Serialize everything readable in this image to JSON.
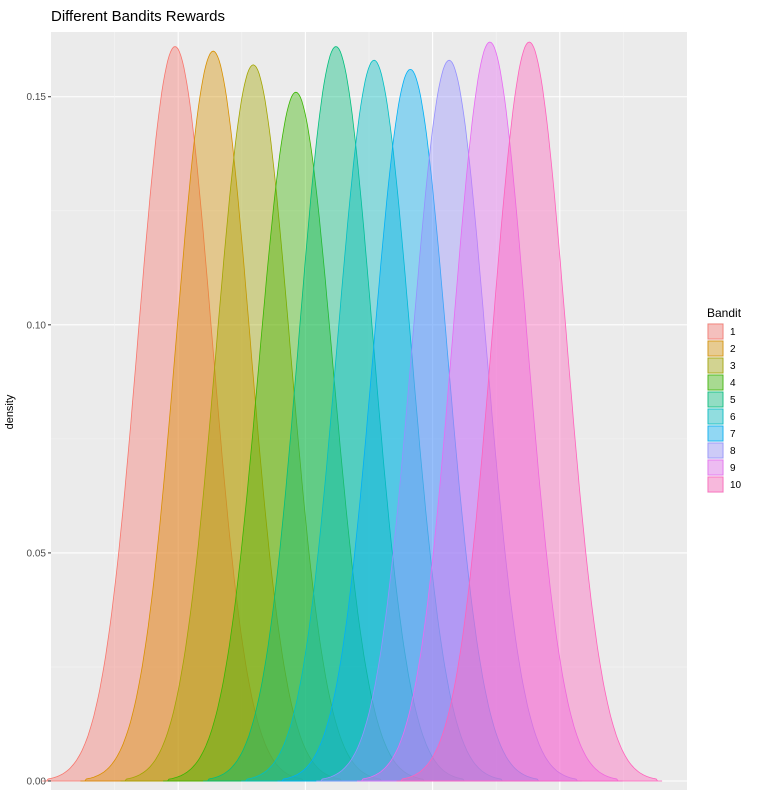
{
  "chart_data": {
    "type": "area",
    "title": "Different Bandits Rewards",
    "xlabel": "",
    "ylabel": "density",
    "ylim": [
      0,
      0.162
    ],
    "xlim": [
      0,
      1
    ],
    "y_ticks": [
      "0.00",
      "0.05",
      "0.10",
      "0.15"
    ],
    "y_tick_values": [
      0,
      0.05,
      0.1,
      0.15
    ],
    "x_gridlines": [
      0.1,
      0.2,
      0.3,
      0.4,
      0.5,
      0.6,
      0.7,
      0.8,
      0.9
    ],
    "grid": true,
    "legend": {
      "title": "Bandit",
      "placement": "right"
    },
    "series": [
      {
        "name": "1",
        "center": 0.195,
        "peak": 0.161,
        "spread": 0.058,
        "color": "#F8766D"
      },
      {
        "name": "2",
        "center": 0.255,
        "peak": 0.16,
        "spread": 0.058,
        "color": "#D89000"
      },
      {
        "name": "3",
        "center": 0.318,
        "peak": 0.157,
        "spread": 0.058,
        "color": "#A3A500"
      },
      {
        "name": "4",
        "center": 0.385,
        "peak": 0.151,
        "spread": 0.058,
        "color": "#39B600"
      },
      {
        "name": "5",
        "center": 0.448,
        "peak": 0.161,
        "spread": 0.058,
        "color": "#00BF7D"
      },
      {
        "name": "6",
        "center": 0.508,
        "peak": 0.158,
        "spread": 0.058,
        "color": "#00BFC4"
      },
      {
        "name": "7",
        "center": 0.565,
        "peak": 0.156,
        "spread": 0.058,
        "color": "#00B0F6"
      },
      {
        "name": "8",
        "center": 0.626,
        "peak": 0.158,
        "spread": 0.058,
        "color": "#9590FF"
      },
      {
        "name": "9",
        "center": 0.69,
        "peak": 0.162,
        "spread": 0.058,
        "color": "#E76BF3"
      },
      {
        "name": "10",
        "center": 0.752,
        "peak": 0.162,
        "spread": 0.058,
        "color": "#FF62BC"
      }
    ]
  }
}
